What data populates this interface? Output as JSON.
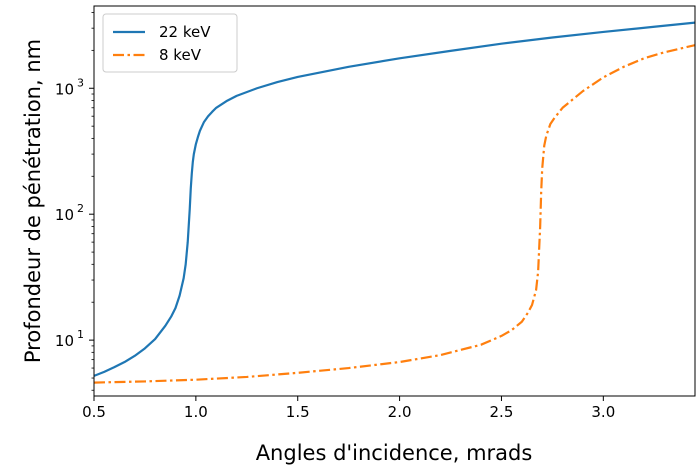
{
  "chart_data": {
    "type": "line",
    "xlabel": "Angles d'incidence, mrads",
    "ylabel": "Profondeur de pénétration, nm",
    "xlim": [
      0.5,
      3.45
    ],
    "ylim": [
      3.6,
      4500
    ],
    "yscale": "log",
    "grid": false,
    "legend_position": "top-left",
    "x_ticks": [
      {
        "value": 0.5,
        "label": "0.5"
      },
      {
        "value": 1.0,
        "label": "1.0"
      },
      {
        "value": 1.5,
        "label": "1.5"
      },
      {
        "value": 2.0,
        "label": "2.0"
      },
      {
        "value": 2.5,
        "label": "2.5"
      },
      {
        "value": 3.0,
        "label": "3.0"
      }
    ],
    "y_ticks": [
      {
        "value": 10,
        "base": "10",
        "exp": "1"
      },
      {
        "value": 100,
        "base": "10",
        "exp": "2"
      },
      {
        "value": 1000,
        "base": "10",
        "exp": "3"
      }
    ],
    "series": [
      {
        "name": "22 keV",
        "color": "#1f77b4",
        "dash": "solid",
        "x": [
          0.5,
          0.55,
          0.6,
          0.65,
          0.7,
          0.75,
          0.8,
          0.85,
          0.88,
          0.9,
          0.92,
          0.94,
          0.95,
          0.96,
          0.97,
          0.975,
          0.98,
          0.985,
          0.99,
          1.0,
          1.01,
          1.02,
          1.04,
          1.06,
          1.08,
          1.1,
          1.15,
          1.2,
          1.3,
          1.4,
          1.5,
          1.75,
          2.0,
          2.25,
          2.5,
          2.75,
          3.0,
          3.25,
          3.45
        ],
        "values": [
          5.2,
          5.6,
          6.1,
          6.7,
          7.5,
          8.6,
          10.2,
          13.0,
          15.5,
          18.0,
          22.5,
          31.0,
          40.0,
          60.0,
          110.0,
          160.0,
          210.0,
          260.0,
          300.0,
          360.0,
          410.0,
          460.0,
          540.0,
          600.0,
          650.0,
          700.0,
          790.0,
          870.0,
          1000.0,
          1120.0,
          1230.0,
          1480.0,
          1730.0,
          1980.0,
          2260.0,
          2530.0,
          2800.0,
          3080.0,
          3320.0
        ]
      },
      {
        "name": "8 keV",
        "color": "#ff7f0e",
        "dash": "dashdot",
        "x": [
          0.5,
          0.75,
          1.0,
          1.25,
          1.5,
          1.75,
          2.0,
          2.2,
          2.4,
          2.5,
          2.55,
          2.6,
          2.63,
          2.65,
          2.67,
          2.68,
          2.69,
          2.695,
          2.7,
          2.71,
          2.72,
          2.74,
          2.76,
          2.8,
          2.9,
          3.0,
          3.1,
          3.2,
          3.3,
          3.45
        ],
        "values": [
          4.6,
          4.7,
          4.85,
          5.1,
          5.5,
          6.0,
          6.7,
          7.6,
          9.2,
          10.8,
          12.0,
          14.0,
          16.5,
          19.0,
          25.0,
          35.0,
          80.0,
          150.0,
          230.0,
          350.0,
          420.0,
          520.0,
          580.0,
          700.0,
          950.0,
          1220.0,
          1480.0,
          1730.0,
          1930.0,
          2200.0
        ]
      }
    ]
  }
}
